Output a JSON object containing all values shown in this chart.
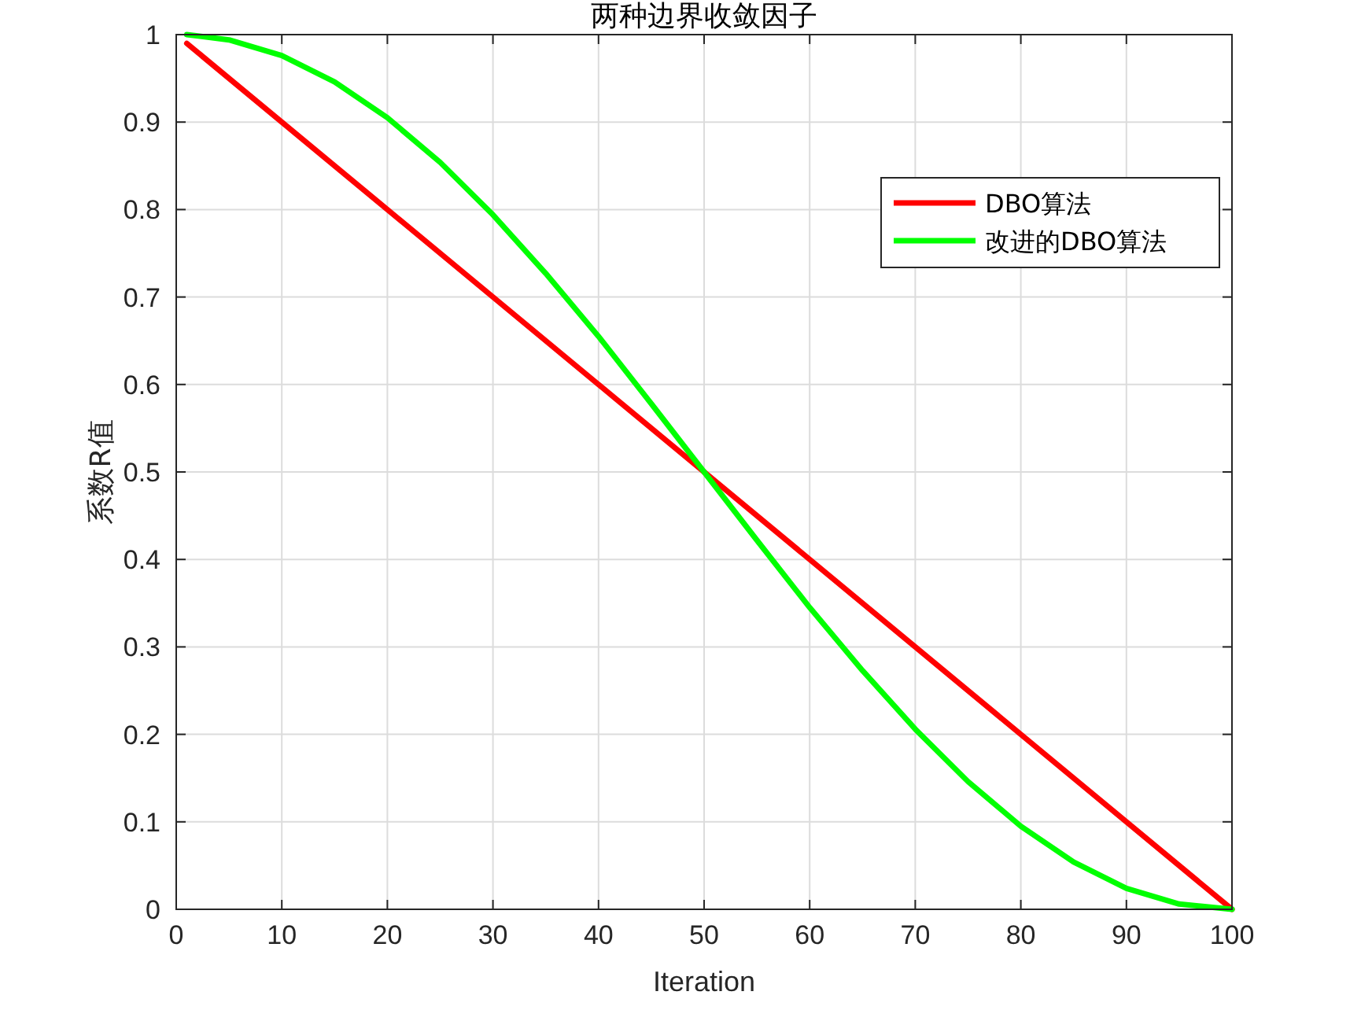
{
  "chart_data": {
    "type": "line",
    "title": "两种边界收敛因子",
    "xlabel": "Iteration",
    "ylabel": "系数R值",
    "series": [
      {
        "name": "DBO算法",
        "color": "#ff0000",
        "x": [
          1,
          100
        ],
        "values": [
          0.99,
          0
        ]
      },
      {
        "name": "改进的DBO算法",
        "color": "#00ff00",
        "x": [
          1,
          5,
          10,
          15,
          20,
          25,
          30,
          35,
          40,
          45,
          50,
          55,
          60,
          65,
          70,
          75,
          80,
          85,
          90,
          95,
          100
        ],
        "values": [
          1.0,
          0.994,
          0.976,
          0.946,
          0.905,
          0.854,
          0.794,
          0.727,
          0.655,
          0.578,
          0.5,
          0.422,
          0.345,
          0.273,
          0.206,
          0.146,
          0.095,
          0.054,
          0.024,
          0.006,
          0
        ]
      }
    ],
    "xlim": [
      0,
      100
    ],
    "ylim": [
      0,
      1
    ],
    "xticks": [
      0,
      10,
      20,
      30,
      40,
      50,
      60,
      70,
      80,
      90,
      100
    ],
    "yticks": [
      0,
      0.1,
      0.2,
      0.3,
      0.4,
      0.5,
      0.6,
      0.7,
      0.8,
      0.9,
      1
    ],
    "grid": true,
    "legend": "top right"
  }
}
